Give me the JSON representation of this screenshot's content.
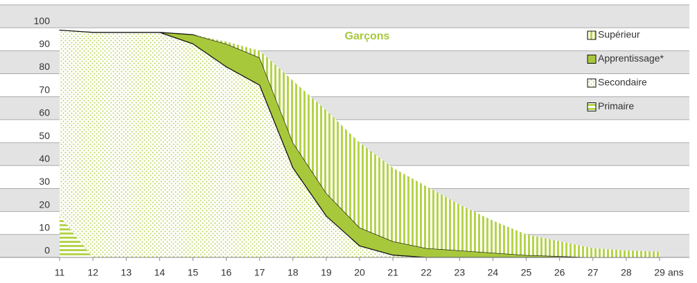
{
  "chart_data": {
    "type": "stacked_area",
    "title": "Garçons",
    "x": [
      11,
      12,
      13,
      14,
      15,
      16,
      17,
      18,
      19,
      20,
      21,
      22,
      23,
      24,
      25,
      26,
      27,
      28,
      29
    ],
    "xlim": [
      11,
      29
    ],
    "xticks": [
      11,
      12,
      13,
      14,
      15,
      16,
      17,
      18,
      19,
      20,
      21,
      22,
      23,
      24,
      25,
      26,
      27,
      28,
      29
    ],
    "x_unit": "ans",
    "ylim": [
      0,
      110
    ],
    "yticks": [
      0,
      10,
      20,
      30,
      40,
      50,
      60,
      70,
      80,
      90,
      100
    ],
    "grid": true,
    "legend": "upper right",
    "series": [
      {
        "name": "Primaire",
        "color": "#b5d34a",
        "fill_style": "horizontal-stripes",
        "values": [
          18,
          0,
          0,
          0,
          0,
          0,
          0,
          0,
          0,
          0,
          0,
          0,
          0,
          0,
          0,
          0,
          0,
          0,
          0
        ]
      },
      {
        "name": "Secondaire",
        "color": "#b5d34a",
        "fill_style": "dots",
        "values": [
          81,
          98,
          98,
          98,
          93,
          83,
          75,
          39,
          18,
          5,
          1,
          0,
          0,
          0,
          0,
          0,
          0,
          0,
          0
        ]
      },
      {
        "name": "Apprentissage*",
        "color": "#a8c83c",
        "fill_style": "solid",
        "values": [
          0,
          0,
          0,
          0,
          4,
          10,
          12,
          11,
          10,
          8,
          6,
          4,
          3,
          2,
          1,
          0.5,
          0,
          0,
          0
        ]
      },
      {
        "name": "Supérieur",
        "color": "#b5d34a",
        "fill_style": "vertical-stripes",
        "values": [
          0,
          0,
          0,
          0,
          0,
          1,
          3,
          27,
          36,
          37,
          32,
          27,
          20,
          14,
          9,
          6.5,
          4,
          3,
          2.5
        ]
      }
    ]
  }
}
